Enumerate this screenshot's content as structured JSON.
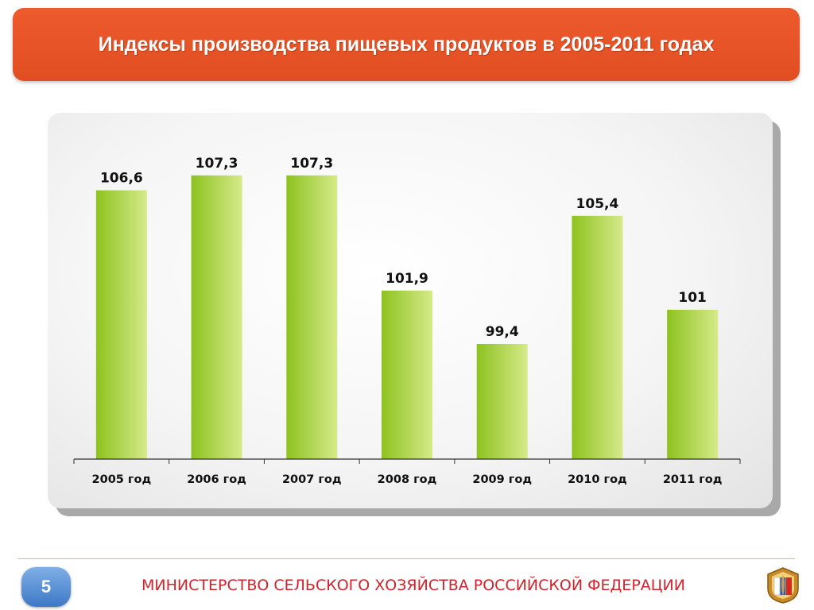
{
  "header": {
    "title": "Индексы производства пищевых продуктов в 2005-2011 годах"
  },
  "chart_data": {
    "type": "bar",
    "title": "",
    "categories": [
      "2005 год",
      "2006 год",
      "2007 год",
      "2008 год",
      "2009 год",
      "2010 год",
      "2011 год"
    ],
    "values": [
      106.6,
      107.3,
      107.3,
      101.9,
      99.4,
      105.4,
      101
    ],
    "value_labels": [
      "106,6",
      "107,3",
      "107,3",
      "101,9",
      "99,4",
      "105,4",
      "101"
    ],
    "xlabel": "",
    "ylabel": "",
    "ylim": [
      94,
      108
    ],
    "grid": false,
    "legend": "none",
    "bar_color_dark": "#8dc21f",
    "bar_color_light": "#d6ea8a"
  },
  "footer": {
    "page_number": "5",
    "ministry": "МИНИСТЕРСТВО СЕЛЬСКОГО ХОЗЯЙСТВА РОССИЙСКОЙ ФЕДЕРАЦИИ",
    "logo_icon": "ministry-emblem-icon"
  },
  "colors": {
    "accent": "#e55427",
    "footer_text": "#d2232a",
    "badge": "#4a86cf"
  }
}
